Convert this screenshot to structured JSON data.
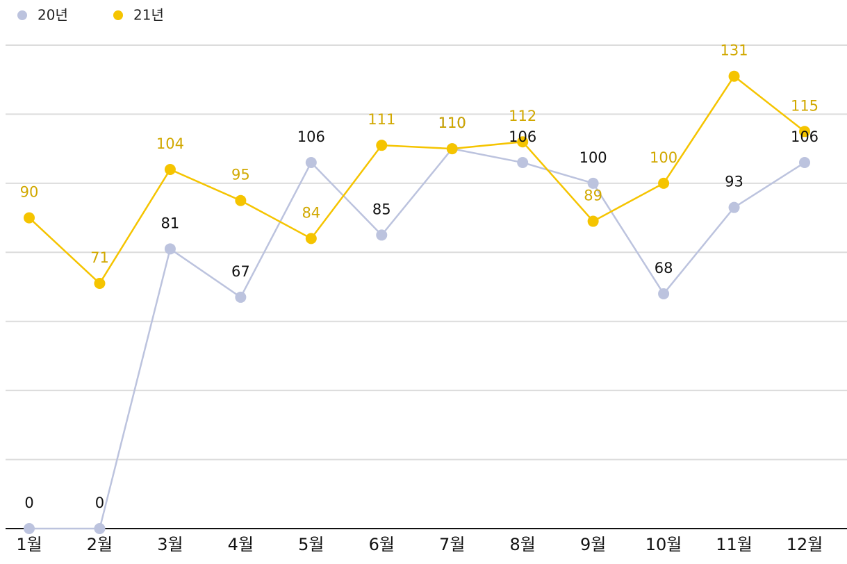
{
  "chart_data": {
    "type": "line",
    "categories": [
      "1월",
      "2월",
      "3월",
      "4월",
      "5월",
      "6월",
      "7월",
      "8월",
      "9월",
      "10월",
      "11월",
      "12월"
    ],
    "series": [
      {
        "name": "20년",
        "color": "#bcc3de",
        "label_color": "#111111",
        "values": [
          0,
          0,
          81,
          67,
          106,
          85,
          110,
          106,
          100,
          68,
          93,
          106
        ]
      },
      {
        "name": "21년",
        "color": "#f5c400",
        "label_color": "#d1a800",
        "values": [
          90,
          71,
          104,
          95,
          84,
          111,
          110,
          112,
          89,
          100,
          131,
          115
        ]
      }
    ],
    "ylim": [
      0,
      140
    ],
    "yticks": [
      0,
      20,
      40,
      60,
      80,
      100,
      120,
      140
    ],
    "grid": true
  }
}
